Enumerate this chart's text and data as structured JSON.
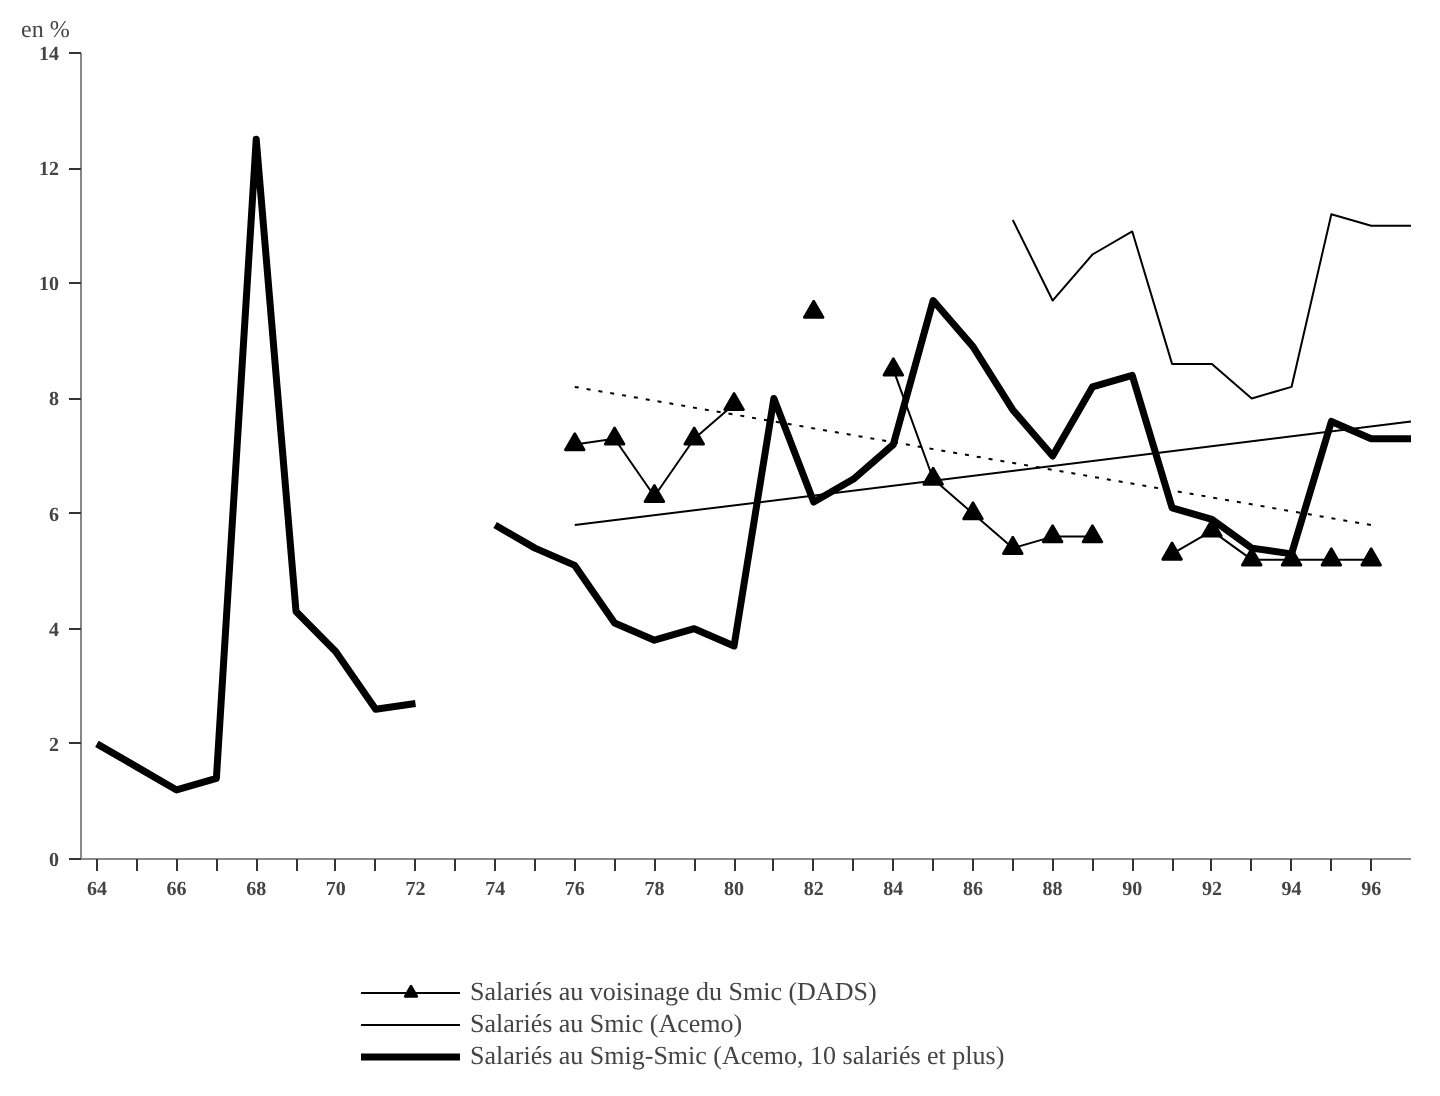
{
  "chart_data": {
    "type": "line",
    "ylabel": "en %",
    "x": [
      64,
      65,
      66,
      67,
      68,
      69,
      70,
      71,
      72,
      73,
      74,
      75,
      76,
      77,
      78,
      79,
      80,
      81,
      82,
      83,
      84,
      85,
      86,
      87,
      88,
      89,
      90,
      91,
      92,
      93,
      94,
      95,
      96,
      97
    ],
    "xlim": [
      63.6,
      97
    ],
    "ylim": [
      0,
      14
    ],
    "xticks": [
      64,
      {
        "value": 65,
        "label": null
      },
      66,
      {
        "value": 67,
        "label": null
      },
      68,
      {
        "value": 69,
        "label": null
      },
      70,
      {
        "value": 71,
        "label": null
      },
      72,
      {
        "value": 73,
        "label": null
      },
      74,
      {
        "value": 75,
        "label": null
      },
      76,
      {
        "value": 77,
        "label": null
      },
      78,
      {
        "value": 79,
        "label": null
      },
      80,
      {
        "value": 81,
        "label": null
      },
      82,
      {
        "value": 83,
        "label": null
      },
      84,
      {
        "value": 85,
        "label": null
      },
      86,
      {
        "value": 87,
        "label": null
      },
      88,
      {
        "value": 89,
        "label": null
      },
      90,
      {
        "value": 91,
        "label": null
      },
      92,
      {
        "value": 93,
        "label": null
      },
      94,
      {
        "value": 95,
        "label": null
      },
      96
    ],
    "yticks": [
      0,
      2,
      4,
      6,
      8,
      10,
      12,
      14
    ],
    "grid": false,
    "legend": "bottom",
    "series": [
      {
        "name": "Salariés au voisinage du Smic (DADS)",
        "color": "#000000",
        "marker": "triangle",
        "values": [
          null,
          null,
          null,
          null,
          null,
          null,
          null,
          null,
          null,
          null,
          null,
          null,
          7.2,
          7.3,
          6.3,
          7.3,
          7.9,
          null,
          9.5,
          null,
          8.5,
          6.6,
          6.0,
          5.4,
          5.6,
          5.6,
          null,
          5.3,
          5.7,
          5.2,
          5.2,
          5.2,
          5.2,
          null
        ]
      },
      {
        "name": "Salariés au Smic (Acemo)",
        "color": "#000000",
        "values": [
          null,
          null,
          null,
          null,
          null,
          null,
          null,
          null,
          null,
          null,
          null,
          null,
          null,
          null,
          null,
          null,
          null,
          null,
          null,
          null,
          null,
          null,
          null,
          11.1,
          9.7,
          10.5,
          10.9,
          8.6,
          8.6,
          8.0,
          8.2,
          11.2,
          11.0,
          11.0
        ]
      },
      {
        "name": "Salariés au Smig-Smic (Acemo, 10 salariés et plus)",
        "color": "#000000",
        "values": [
          2.0,
          1.6,
          1.2,
          1.4,
          12.5,
          4.3,
          3.6,
          2.6,
          2.7,
          null,
          5.8,
          5.4,
          5.1,
          4.1,
          3.8,
          4.0,
          3.7,
          8.0,
          6.2,
          6.6,
          7.2,
          9.7,
          8.9,
          7.8,
          7.0,
          8.2,
          8.4,
          6.1,
          5.9,
          5.4,
          5.3,
          7.6,
          7.3,
          7.3
        ]
      },
      {
        "color": "#000000",
        "x": [
          76,
          97
        ],
        "values": [
          5.8,
          7.6
        ]
      },
      {
        "color": "#000000",
        "x": [
          76,
          96
        ],
        "values": [
          8.2,
          5.8
        ],
        "line_style": "dotted"
      }
    ]
  }
}
